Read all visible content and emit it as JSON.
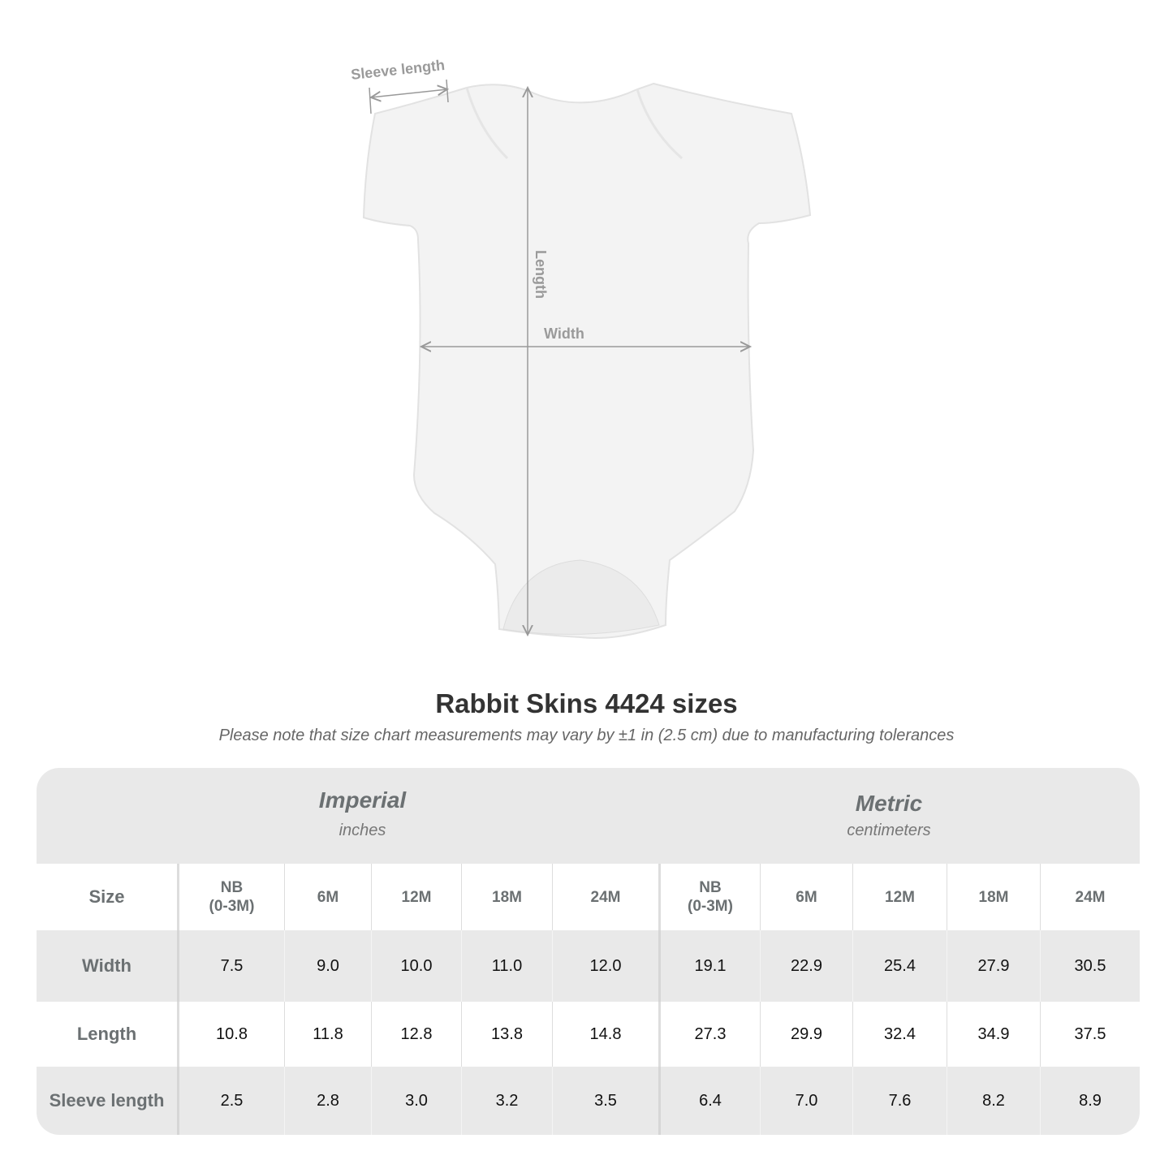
{
  "diagram": {
    "labels": {
      "sleeve": "Sleeve length",
      "length": "Length",
      "width": "Width"
    }
  },
  "title": "Rabbit Skins 4424 sizes",
  "subtitle": "Please note that size chart measurements may vary by ±1 in (2.5 cm) due to manufacturing tolerances",
  "table": {
    "imperial": {
      "name": "Imperial",
      "unit": "inches"
    },
    "metric": {
      "name": "Metric",
      "unit": "centimeters"
    },
    "size_label": "Size",
    "sizes": [
      "NB\n(0-3M)",
      "6M",
      "12M",
      "18M",
      "24M",
      "NB\n(0-3M)",
      "6M",
      "12M",
      "18M",
      "24M"
    ],
    "rows": [
      {
        "label": "Width",
        "values": [
          "7.5",
          "9.0",
          "10.0",
          "11.0",
          "12.0",
          "19.1",
          "22.9",
          "25.4",
          "27.9",
          "30.5"
        ]
      },
      {
        "label": "Length",
        "values": [
          "10.8",
          "11.8",
          "12.8",
          "13.8",
          "14.8",
          "27.3",
          "29.9",
          "32.4",
          "34.9",
          "37.5"
        ]
      },
      {
        "label": "Sleeve length",
        "values": [
          "2.5",
          "2.8",
          "3.0",
          "3.2",
          "3.5",
          "6.4",
          "7.0",
          "7.6",
          "8.2",
          "8.9"
        ]
      }
    ]
  }
}
